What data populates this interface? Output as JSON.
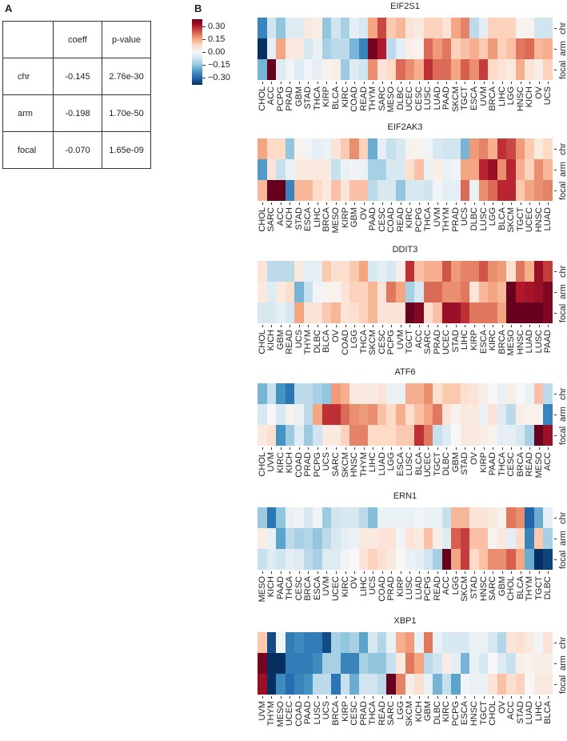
{
  "panel_a": {
    "letter": "A",
    "headers": [
      "",
      "coeff",
      "p-value"
    ],
    "rows": [
      {
        "label": "chr",
        "coeff": "-0.145",
        "pvalue": "2.76e-30"
      },
      {
        "label": "arm",
        "coeff": "-0.198",
        "pvalue": "1.70e-50"
      },
      {
        "label": "focal",
        "coeff": "-0.070",
        "pvalue": "1.65e-09"
      }
    ]
  },
  "panel_b": {
    "letter": "B",
    "legend": {
      "ticks": [
        "0.30",
        "0.15",
        "0.00",
        "−0.15",
        "−0.30"
      ]
    },
    "row_labels": [
      "chr",
      "arm",
      "focal"
    ]
  },
  "chart_data": [
    {
      "type": "heatmap",
      "title": "EIF2S1",
      "rows": [
        "chr",
        "arm",
        "focal"
      ],
      "categories": [
        "CHOL",
        "ACC",
        "PCPG",
        "PRAD",
        "GBM",
        "STAD",
        "THCA",
        "KIRP",
        "BLCA",
        "KIRC",
        "COAD",
        "READ",
        "THYM",
        "SARC",
        "MESO",
        "DLBC",
        "UCEC",
        "CESC",
        "LUSC",
        "LUAD",
        "PAAD",
        "SKCM",
        "TGCT",
        "ESCA",
        "UVM",
        "BRCA",
        "LIHC",
        "LGG",
        "HNSC",
        "KICH",
        "OV",
        "UCS"
      ],
      "values": [
        [
          -0.2,
          -0.06,
          -0.12,
          -0.04,
          -0.04,
          0.03,
          0.02,
          -0.12,
          -0.06,
          -0.1,
          -0.03,
          -0.05,
          0.12,
          0.2,
          0.08,
          0.1,
          0.04,
          0.03,
          0.07,
          0.07,
          0.04,
          0.12,
          0.15,
          -0.08,
          -0.03,
          0.07,
          0.07,
          0.07,
          0.01,
          0.01,
          -0.06,
          -0.06
        ],
        [
          -0.33,
          -0.03,
          0.12,
          0.03,
          0.03,
          -0.05,
          -0.02,
          -0.1,
          -0.08,
          -0.08,
          -0.14,
          -0.2,
          0.29,
          0.24,
          -0.08,
          -0.03,
          0.02,
          0.01,
          0.17,
          0.13,
          0.16,
          0.07,
          0.09,
          0.11,
          0.08,
          0.13,
          0.07,
          0.09,
          0.16,
          0.17,
          0.1,
          0.11
        ],
        [
          -0.14,
          0.35,
          -0.04,
          -0.01,
          -0.04,
          -0.01,
          -0.03,
          0.01,
          0.02,
          -0.11,
          -0.04,
          -0.06,
          0.14,
          0.04,
          0.06,
          0.17,
          0.14,
          0.11,
          0.22,
          0.17,
          0.17,
          0.12,
          0.18,
          0.14,
          0.21,
          0.06,
          0.04,
          0.03,
          0.11,
          0.04,
          0.02,
          0.07
        ]
      ],
      "colorbar": {
        "min": -0.3,
        "max": 0.3,
        "ticks": [
          0.3,
          0.15,
          0.0,
          -0.15,
          -0.3
        ]
      }
    },
    {
      "type": "heatmap",
      "title": "EIF2AK3",
      "rows": [
        "chr",
        "arm",
        "focal"
      ],
      "categories": [
        "CHOL",
        "SARC",
        "ACC",
        "KICH",
        "STAD",
        "ESCA",
        "LIHC",
        "BRCA",
        "MESO",
        "KIRP",
        "GBM",
        "OV",
        "PAAD",
        "CESC",
        "COAD",
        "READ",
        "KIRC",
        "PCPG",
        "THCA",
        "UVM",
        "THYM",
        "PRAD",
        "UCS",
        "DLBC",
        "LUSC",
        "LGG",
        "BLCA",
        "SKCM",
        "TGCT",
        "UCEC",
        "HNSC",
        "LUAD"
      ],
      "values": [
        [
          0.12,
          0.06,
          0.06,
          -0.12,
          0.01,
          -0.01,
          -0.03,
          -0.02,
          0.04,
          0.08,
          0.14,
          0.07,
          -0.15,
          -0.03,
          -0.07,
          -0.05,
          0.01,
          0.01,
          -0.01,
          -0.05,
          -0.06,
          -0.06,
          -0.14,
          0.13,
          0.15,
          0.11,
          0.22,
          0.2,
          0.13,
          0.08,
          0.03,
          0.06
        ],
        [
          -0.17,
          0.04,
          -0.07,
          -0.02,
          0.03,
          0.03,
          0.03,
          0.03,
          -0.07,
          -0.02,
          -0.01,
          -0.02,
          -0.1,
          -0.1,
          -0.05,
          -0.05,
          0.05,
          0.09,
          -0.02,
          0.02,
          -0.02,
          -0.01,
          0.12,
          0.12,
          0.23,
          0.26,
          0.14,
          0.23,
          0.11,
          0.07,
          0.14,
          0.1
        ],
        [
          0.1,
          0.36,
          0.36,
          -0.2,
          0.1,
          0.1,
          0.06,
          0.03,
          0.09,
          0.04,
          0.09,
          0.09,
          -0.08,
          -0.05,
          -0.05,
          -0.12,
          -0.05,
          -0.05,
          -0.06,
          -0.01,
          -0.03,
          -0.03,
          0.17,
          -0.02,
          0.14,
          0.17,
          0.23,
          0.23,
          0.08,
          0.12,
          0.14,
          0.15
        ]
      ],
      "colorbar": {
        "min": -0.3,
        "max": 0.3
      }
    },
    {
      "type": "heatmap",
      "title": "DDIT3",
      "rows": [
        "chr",
        "arm",
        "focal"
      ],
      "categories": [
        "CHOL",
        "KICH",
        "GBM",
        "READ",
        "UCS",
        "THYM",
        "DLBC",
        "BLCA",
        "OV",
        "COAD",
        "LGG",
        "THCA",
        "SKCM",
        "CESC",
        "PCPG",
        "UVM",
        "TGCT",
        "ACC",
        "SARC",
        "PRAD",
        "UCEC",
        "STAD",
        "LIHC",
        "KIRP",
        "ESCA",
        "KIRC",
        "BRCA",
        "MESO",
        "HNSC",
        "LUAD",
        "LUSC",
        "PAAD"
      ],
      "values": [
        [
          0.04,
          -0.08,
          -0.08,
          -0.08,
          0.03,
          -0.03,
          -0.03,
          0.08,
          0.05,
          0.05,
          0.08,
          0.12,
          -0.05,
          -0.03,
          -0.05,
          0.02,
          0.22,
          0.09,
          0.11,
          0.11,
          0.19,
          0.13,
          0.15,
          0.15,
          0.19,
          0.14,
          0.13,
          0.05,
          0.16,
          0.11,
          0.26,
          0.21
        ],
        [
          0.03,
          -0.04,
          0.03,
          0.05,
          -0.14,
          -0.07,
          -0.01,
          0.01,
          0.01,
          0.04,
          0.07,
          0.07,
          0.1,
          0.04,
          0.16,
          0.12,
          -0.1,
          -0.05,
          0.17,
          0.17,
          0.14,
          0.14,
          0.16,
          0.04,
          0.1,
          0.12,
          0.1,
          0.35,
          0.24,
          0.25,
          0.26,
          0.28
        ],
        [
          -0.05,
          -0.05,
          -0.03,
          -0.05,
          0.12,
          0.04,
          0.04,
          0.08,
          0.1,
          0.04,
          0.05,
          0.07,
          0.1,
          0.04,
          0.04,
          0.04,
          0.36,
          0.28,
          0.05,
          0.09,
          0.26,
          0.26,
          0.22,
          0.16,
          0.16,
          0.16,
          0.12,
          0.3,
          0.35,
          0.33,
          0.33,
          0.28
        ]
      ],
      "colorbar": {
        "min": -0.3,
        "max": 0.3
      }
    },
    {
      "type": "heatmap",
      "title": "ATF6",
      "rows": [
        "chr",
        "arm",
        "focal"
      ],
      "categories": [
        "CHOL",
        "UVM",
        "KIRC",
        "KICH",
        "COAD",
        "PRAD",
        "PCPG",
        "UCS",
        "SARC",
        "SKCM",
        "HNSC",
        "THYM",
        "LIHC",
        "LUAD",
        "LGG",
        "ESCA",
        "LUSC",
        "BLCA",
        "UCEC",
        "TGCT",
        "DLBC",
        "GBM",
        "STAD",
        "OV",
        "KIRP",
        "PAAD",
        "THCA",
        "CESC",
        "BRCA",
        "READ",
        "MESO",
        "ACC"
      ],
      "values": [
        [
          -0.14,
          -0.07,
          -0.18,
          -0.22,
          -0.08,
          -0.08,
          -0.1,
          -0.12,
          0.13,
          0.11,
          0.03,
          0.03,
          0.03,
          0.04,
          -0.02,
          -0.02,
          0.11,
          0.11,
          0.14,
          0.05,
          0.08,
          0.08,
          0.05,
          0.04,
          0.02,
          0.0,
          -0.02,
          0.02,
          0.0,
          -0.02,
          0.09,
          -0.08
        ],
        [
          -0.05,
          0.0,
          -0.05,
          0.01,
          -0.02,
          -0.08,
          0.12,
          0.22,
          0.22,
          0.17,
          0.14,
          0.13,
          0.14,
          0.09,
          0.06,
          0.11,
          0.05,
          0.09,
          0.12,
          0.16,
          0.04,
          0.01,
          0.03,
          0.03,
          -0.02,
          0.04,
          -0.04,
          -0.08,
          0.02,
          0.01,
          0.01,
          -0.2
        ],
        [
          0.03,
          0.05,
          -0.18,
          -0.11,
          -0.04,
          -0.11,
          -0.06,
          0.03,
          0.03,
          0.07,
          0.15,
          0.15,
          0.06,
          0.06,
          0.06,
          0.08,
          0.08,
          0.22,
          0.16,
          -0.07,
          -0.04,
          0.0,
          0.03,
          0.03,
          0.02,
          0.01,
          -0.03,
          -0.03,
          -0.05,
          -0.1,
          0.3,
          0.26
        ]
      ],
      "colorbar": {
        "min": -0.3,
        "max": 0.3
      }
    },
    {
      "type": "heatmap",
      "title": "ERN1",
      "rows": [
        "chr",
        "arm",
        "focal"
      ],
      "categories": [
        "MESO",
        "KICH",
        "PAAD",
        "THCA",
        "CESC",
        "BRCA",
        "ESCA",
        "UVM",
        "UCEC",
        "KIRC",
        "OV",
        "LIHC",
        "UCS",
        "COAD",
        "PRAD",
        "KIRP",
        "LUSC",
        "LUAD",
        "PCPG",
        "READ",
        "ACC",
        "LGG",
        "SKCM",
        "STAD",
        "HNSC",
        "SARC",
        "GBM",
        "CHOL",
        "BLCA",
        "THYM",
        "TGCT",
        "DLBC"
      ],
      "values": [
        [
          -0.11,
          -0.22,
          -0.12,
          -0.02,
          -0.01,
          -0.05,
          -0.01,
          -0.11,
          -0.06,
          -0.05,
          -0.05,
          -0.08,
          -0.13,
          -0.02,
          -0.02,
          -0.02,
          -0.02,
          -0.01,
          -0.02,
          -0.02,
          -0.07,
          0.1,
          0.1,
          0.04,
          0.04,
          0.03,
          0.01,
          0.16,
          0.14,
          -0.24,
          -0.15,
          -0.03
        ],
        [
          0.02,
          -0.02,
          -0.16,
          -0.08,
          -0.1,
          -0.09,
          -0.12,
          -0.08,
          -0.05,
          -0.03,
          -0.02,
          0.03,
          0.03,
          0.04,
          0.04,
          -0.01,
          0.04,
          0.03,
          0.09,
          0.02,
          -0.04,
          0.18,
          0.21,
          0.09,
          0.09,
          0.01,
          0.03,
          -0.03,
          0.06,
          -0.2,
          0.08,
          -0.1
        ],
        [
          -0.07,
          -0.04,
          -0.06,
          -0.03,
          -0.04,
          -0.08,
          -0.1,
          -0.04,
          -0.04,
          -0.01,
          0.0,
          0.04,
          0.07,
          0.05,
          0.03,
          0.0,
          -0.02,
          -0.03,
          -0.06,
          -0.1,
          0.3,
          0.12,
          0.21,
          0.06,
          0.09,
          0.14,
          0.14,
          0.18,
          0.12,
          -0.15,
          -0.33,
          -0.28
        ]
      ],
      "colorbar": {
        "min": -0.3,
        "max": 0.3
      }
    },
    {
      "type": "heatmap",
      "title": "XBP1",
      "rows": [
        "chr",
        "arm",
        "focal"
      ],
      "categories": [
        "UVM",
        "THYM",
        "MESO",
        "UCEC",
        "COAD",
        "PAAD",
        "LUSC",
        "UCS",
        "BRCA",
        "KIRP",
        "CESC",
        "PRAD",
        "THCA",
        "READ",
        "SARC",
        "LGG",
        "SKCM",
        "KICH",
        "GBM",
        "DLBC",
        "KIRC",
        "PCPG",
        "ESCA",
        "HNSC",
        "TGCT",
        "CHOL",
        "OV",
        "ACC",
        "STAD",
        "LUAD",
        "LIHC",
        "BLCA"
      ],
      "values": [
        [
          0.08,
          -0.27,
          -0.01,
          -0.21,
          -0.19,
          -0.21,
          -0.21,
          -0.27,
          -0.1,
          -0.12,
          -0.1,
          -0.16,
          -0.05,
          -0.09,
          -0.02,
          0.11,
          0.13,
          -0.02,
          0.16,
          -0.02,
          -0.05,
          -0.05,
          -0.05,
          -0.02,
          -0.02,
          -0.05,
          -0.09,
          0.04,
          0.05,
          0.03,
          -0.01,
          0.04
        ],
        [
          0.29,
          -0.31,
          -0.31,
          -0.21,
          -0.21,
          -0.21,
          -0.19,
          -0.1,
          -0.1,
          -0.2,
          -0.2,
          -0.1,
          -0.12,
          -0.12,
          -0.07,
          0.03,
          0.16,
          0.12,
          -0.08,
          -0.06,
          0.02,
          -0.03,
          -0.14,
          -0.02,
          -0.05,
          0.0,
          -0.04,
          -0.07,
          0.02,
          0.01,
          0.02,
          0.02
        ],
        [
          0.26,
          -0.33,
          -0.19,
          -0.23,
          -0.2,
          -0.18,
          -0.08,
          -0.08,
          -0.22,
          -0.07,
          -0.15,
          -0.06,
          -0.06,
          -0.08,
          0.3,
          0.15,
          0.02,
          0.05,
          -0.02,
          -0.14,
          -0.07,
          -0.16,
          -0.01,
          -0.02,
          -0.02,
          0.04,
          0.09,
          0.05,
          0.07,
          0.0,
          0.03,
          0.03
        ]
      ],
      "colorbar": {
        "min": -0.3,
        "max": 0.3
      }
    }
  ]
}
